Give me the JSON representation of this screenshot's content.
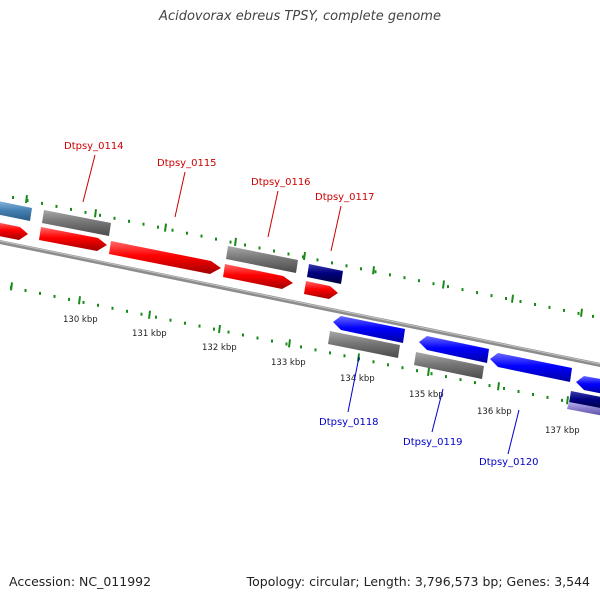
{
  "title": "Acidovorax ebreus TPSY, complete genome",
  "footer": {
    "accession": "Accession: NC_011992",
    "summary": "Topology: circular; Length: 3,796,573 bp; Genes: 3,544"
  },
  "colors": {
    "forward_gene": "#ff0000",
    "reverse_gene": "#0000ff",
    "gray_feature": "#777777",
    "dark_feature": "#000080",
    "light_blue_feature": "#4682b4",
    "lavender_feature": "#8a7ecf",
    "tick": "#1a8a1a",
    "backbone": "#8c8c8c",
    "forward_label": "#cc0000",
    "reverse_label": "#0000cc"
  },
  "scale_ticks": [
    {
      "kbp": 130,
      "label": "130 kbp"
    },
    {
      "kbp": 131,
      "label": "131 kbp"
    },
    {
      "kbp": 132,
      "label": "132 kbp"
    },
    {
      "kbp": 133,
      "label": "133 kbp"
    },
    {
      "kbp": 134,
      "label": "134 kbp"
    },
    {
      "kbp": 135,
      "label": "135 kbp"
    },
    {
      "kbp": 136,
      "label": "136 kbp"
    },
    {
      "kbp": 137,
      "label": "137 kbp"
    }
  ],
  "gene_labels": [
    {
      "name": "Dtpsy_0114",
      "strand": "forward"
    },
    {
      "name": "Dtpsy_0115",
      "strand": "forward"
    },
    {
      "name": "Dtpsy_0116",
      "strand": "forward"
    },
    {
      "name": "Dtpsy_0117",
      "strand": "forward"
    },
    {
      "name": "Dtpsy_0118",
      "strand": "reverse"
    },
    {
      "name": "Dtpsy_0119",
      "strand": "reverse"
    },
    {
      "name": "Dtpsy_0120",
      "strand": "reverse"
    }
  ]
}
